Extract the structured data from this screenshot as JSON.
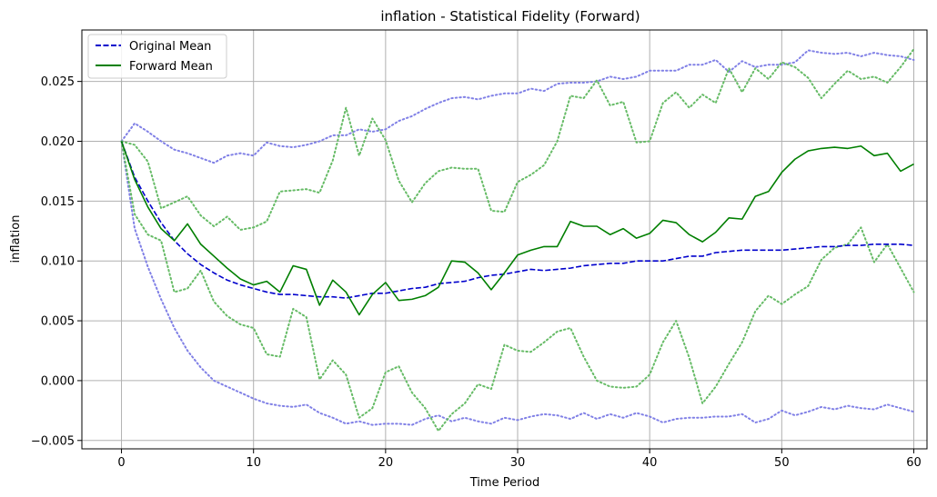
{
  "chart_data": {
    "type": "line",
    "title": "inflation - Statistical Fidelity (Forward)",
    "xlabel": "Time Period",
    "ylabel": "inflation",
    "xlim": [
      -3,
      61
    ],
    "ylim": [
      -0.0057,
      0.0293
    ],
    "xticks": [
      0,
      10,
      20,
      30,
      40,
      50,
      60
    ],
    "xtick_labels": [
      "0",
      "10",
      "20",
      "30",
      "40",
      "50",
      "60"
    ],
    "yticks": [
      -0.005,
      0.0,
      0.005,
      0.01,
      0.015,
      0.02,
      0.025
    ],
    "ytick_labels": [
      "−0.005",
      "0.000",
      "0.005",
      "0.010",
      "0.015",
      "0.020",
      "0.025"
    ],
    "grid": true,
    "legend": {
      "position": "upper-left",
      "entries": [
        "Original Mean",
        "Forward Mean"
      ]
    },
    "colors": {
      "original": "#0000cc",
      "original_band": "#8080e6",
      "forward": "#007f00",
      "forward_band": "#66bb66",
      "grid": "#b0b0b0"
    },
    "series": [
      {
        "name": "Original Mean",
        "style": "dashed",
        "color": "#0000cc",
        "x": [
          0,
          1,
          2,
          3,
          4,
          5,
          6,
          7,
          8,
          9,
          10,
          11,
          12,
          13,
          14,
          15,
          16,
          17,
          18,
          19,
          20,
          21,
          22,
          23,
          24,
          25,
          26,
          27,
          28,
          29,
          30,
          31,
          32,
          33,
          34,
          35,
          36,
          37,
          38,
          39,
          40,
          41,
          42,
          43,
          44,
          45,
          46,
          47,
          48,
          49,
          50,
          51,
          52,
          53,
          54,
          55,
          56,
          57,
          58,
          59,
          60
        ],
        "y": [
          0.02,
          0.017,
          0.015,
          0.0132,
          0.0117,
          0.0106,
          0.0097,
          0.009,
          0.0084,
          0.008,
          0.0077,
          0.0074,
          0.0072,
          0.0072,
          0.0071,
          0.007,
          0.007,
          0.0069,
          0.0071,
          0.0073,
          0.0073,
          0.0075,
          0.0077,
          0.0078,
          0.0081,
          0.0082,
          0.0083,
          0.0086,
          0.0088,
          0.0089,
          0.0091,
          0.0093,
          0.0092,
          0.0093,
          0.0094,
          0.0096,
          0.0097,
          0.0098,
          0.0098,
          0.01,
          0.01,
          0.01,
          0.0102,
          0.0104,
          0.0104,
          0.0107,
          0.0108,
          0.0109,
          0.0109,
          0.0109,
          0.0109,
          0.011,
          0.0111,
          0.0112,
          0.0112,
          0.0113,
          0.0113,
          0.0114,
          0.0114,
          0.0114,
          0.0113
        ]
      },
      {
        "name": "Forward Mean",
        "style": "solid",
        "color": "#007f00",
        "x": [
          0,
          1,
          2,
          3,
          4,
          5,
          6,
          7,
          8,
          9,
          10,
          11,
          12,
          13,
          14,
          15,
          16,
          17,
          18,
          19,
          20,
          21,
          22,
          23,
          24,
          25,
          26,
          27,
          28,
          29,
          30,
          31,
          32,
          33,
          34,
          35,
          36,
          37,
          38,
          39,
          40,
          41,
          42,
          43,
          44,
          45,
          46,
          47,
          48,
          49,
          50,
          51,
          52,
          53,
          54,
          55,
          56,
          57,
          58,
          59,
          60
        ],
        "y": [
          0.02,
          0.0168,
          0.0145,
          0.0127,
          0.0117,
          0.0131,
          0.0114,
          0.0104,
          0.0094,
          0.0085,
          0.008,
          0.0083,
          0.0074,
          0.0096,
          0.0093,
          0.0063,
          0.0084,
          0.0074,
          0.0055,
          0.0072,
          0.0082,
          0.0067,
          0.0068,
          0.0071,
          0.0078,
          0.01,
          0.0099,
          0.009,
          0.0076,
          0.009,
          0.0105,
          0.0109,
          0.0112,
          0.0112,
          0.0133,
          0.0129,
          0.0129,
          0.0122,
          0.0127,
          0.0119,
          0.0123,
          0.0134,
          0.0132,
          0.0122,
          0.0116,
          0.0124,
          0.0136,
          0.0135,
          0.0154,
          0.0158,
          0.0174,
          0.0185,
          0.0192,
          0.0194,
          0.0195,
          0.0194,
          0.0196,
          0.0188,
          0.019,
          0.0175,
          0.0181
        ]
      },
      {
        "name": "",
        "style": "dotted",
        "color": "#8080e6",
        "x": [
          0,
          1,
          2,
          3,
          4,
          5,
          6,
          7,
          8,
          9,
          10,
          11,
          12,
          13,
          14,
          15,
          16,
          17,
          18,
          19,
          20,
          21,
          22,
          23,
          24,
          25,
          26,
          27,
          28,
          29,
          30,
          31,
          32,
          33,
          34,
          35,
          36,
          37,
          38,
          39,
          40,
          41,
          42,
          43,
          44,
          45,
          46,
          47,
          48,
          49,
          50,
          51,
          52,
          53,
          54,
          55,
          56,
          57,
          58,
          59,
          60
        ],
        "y": [
          0.02,
          0.0215,
          0.0208,
          0.02,
          0.0193,
          0.019,
          0.0186,
          0.0182,
          0.0188,
          0.019,
          0.0188,
          0.0199,
          0.0196,
          0.0195,
          0.0197,
          0.02,
          0.0205,
          0.0205,
          0.021,
          0.0208,
          0.021,
          0.0217,
          0.0221,
          0.0227,
          0.0232,
          0.0236,
          0.0237,
          0.0235,
          0.0238,
          0.024,
          0.024,
          0.0244,
          0.0242,
          0.0248,
          0.0249,
          0.0249,
          0.025,
          0.0254,
          0.0252,
          0.0254,
          0.0259,
          0.0259,
          0.0259,
          0.0264,
          0.0264,
          0.0268,
          0.0258,
          0.0267,
          0.0262,
          0.0264,
          0.0264,
          0.0266,
          0.0276,
          0.0274,
          0.0273,
          0.0274,
          0.0271,
          0.0274,
          0.0272,
          0.0271,
          0.0268
        ]
      },
      {
        "name": "",
        "style": "dotted",
        "color": "#8080e6",
        "x": [
          0,
          1,
          2,
          3,
          4,
          5,
          6,
          7,
          8,
          9,
          10,
          11,
          12,
          13,
          14,
          15,
          16,
          17,
          18,
          19,
          20,
          21,
          22,
          23,
          24,
          25,
          26,
          27,
          28,
          29,
          30,
          31,
          32,
          33,
          34,
          35,
          36,
          37,
          38,
          39,
          40,
          41,
          42,
          43,
          44,
          45,
          46,
          47,
          48,
          49,
          50,
          51,
          52,
          53,
          54,
          55,
          56,
          57,
          58,
          59,
          60
        ],
        "y": [
          0.02,
          0.0127,
          0.0095,
          0.0068,
          0.0044,
          0.0025,
          0.0011,
          0.0,
          -0.0005,
          -0.001,
          -0.0015,
          -0.0019,
          -0.0021,
          -0.0022,
          -0.002,
          -0.0027,
          -0.0031,
          -0.0036,
          -0.0034,
          -0.0037,
          -0.0036,
          -0.0036,
          -0.0037,
          -0.0032,
          -0.0029,
          -0.0034,
          -0.0031,
          -0.0034,
          -0.0036,
          -0.0031,
          -0.0033,
          -0.003,
          -0.0028,
          -0.0029,
          -0.0032,
          -0.0027,
          -0.0032,
          -0.0028,
          -0.0031,
          -0.0027,
          -0.003,
          -0.0035,
          -0.0032,
          -0.0031,
          -0.0031,
          -0.003,
          -0.003,
          -0.0028,
          -0.0035,
          -0.0032,
          -0.0025,
          -0.0029,
          -0.0026,
          -0.0022,
          -0.0024,
          -0.0021,
          -0.0023,
          -0.0024,
          -0.002,
          -0.0023,
          -0.0026
        ]
      },
      {
        "name": "",
        "style": "dotted",
        "color": "#66bb66",
        "x": [
          0,
          1,
          2,
          3,
          4,
          5,
          6,
          7,
          8,
          9,
          10,
          11,
          12,
          13,
          14,
          15,
          16,
          17,
          18,
          19,
          20,
          21,
          22,
          23,
          24,
          25,
          26,
          27,
          28,
          29,
          30,
          31,
          32,
          33,
          34,
          35,
          36,
          37,
          38,
          39,
          40,
          41,
          42,
          43,
          44,
          45,
          46,
          47,
          48,
          49,
          50,
          51,
          52,
          53,
          54,
          55,
          56,
          57,
          58,
          59,
          60
        ],
        "y": [
          0.02,
          0.0197,
          0.0183,
          0.0144,
          0.0149,
          0.0154,
          0.0138,
          0.0129,
          0.0137,
          0.0126,
          0.0128,
          0.0133,
          0.0158,
          0.0159,
          0.016,
          0.0157,
          0.0184,
          0.0228,
          0.0188,
          0.0219,
          0.0201,
          0.0167,
          0.0149,
          0.0165,
          0.0175,
          0.0178,
          0.0177,
          0.0177,
          0.0142,
          0.0141,
          0.0166,
          0.0172,
          0.018,
          0.02,
          0.0238,
          0.0236,
          0.0251,
          0.023,
          0.0233,
          0.0199,
          0.02,
          0.0232,
          0.0241,
          0.0228,
          0.0239,
          0.0232,
          0.0261,
          0.0241,
          0.0261,
          0.0252,
          0.0266,
          0.0262,
          0.0253,
          0.0236,
          0.0248,
          0.0259,
          0.0252,
          0.0254,
          0.0249,
          0.0262,
          0.0277
        ]
      },
      {
        "name": "",
        "style": "dotted",
        "color": "#66bb66",
        "x": [
          0,
          1,
          2,
          3,
          4,
          5,
          6,
          7,
          8,
          9,
          10,
          11,
          12,
          13,
          14,
          15,
          16,
          17,
          18,
          19,
          20,
          21,
          22,
          23,
          24,
          25,
          26,
          27,
          28,
          29,
          30,
          31,
          32,
          33,
          34,
          35,
          36,
          37,
          38,
          39,
          40,
          41,
          42,
          43,
          44,
          45,
          46,
          47,
          48,
          49,
          50,
          51,
          52,
          53,
          54,
          55,
          56,
          57,
          58,
          59,
          60
        ],
        "y": [
          0.02,
          0.0139,
          0.0122,
          0.0117,
          0.0074,
          0.0077,
          0.0092,
          0.0066,
          0.0054,
          0.0047,
          0.0044,
          0.0022,
          0.002,
          0.006,
          0.0053,
          0.0001,
          0.0017,
          0.0005,
          -0.0031,
          -0.0023,
          0.0007,
          0.0012,
          -0.001,
          -0.0023,
          -0.0042,
          -0.0028,
          -0.0019,
          -0.0003,
          -0.0007,
          0.003,
          0.0025,
          0.0024,
          0.0032,
          0.0041,
          0.0044,
          0.002,
          0.0,
          -0.0005,
          -0.0006,
          -0.0005,
          0.0005,
          0.0032,
          0.005,
          0.0019,
          -0.0019,
          -0.0005,
          0.0014,
          0.0032,
          0.0058,
          0.0071,
          0.0064,
          0.0072,
          0.0079,
          0.0101,
          0.0111,
          0.0114,
          0.0128,
          0.0099,
          0.0114,
          0.0094,
          0.0074
        ]
      }
    ]
  }
}
